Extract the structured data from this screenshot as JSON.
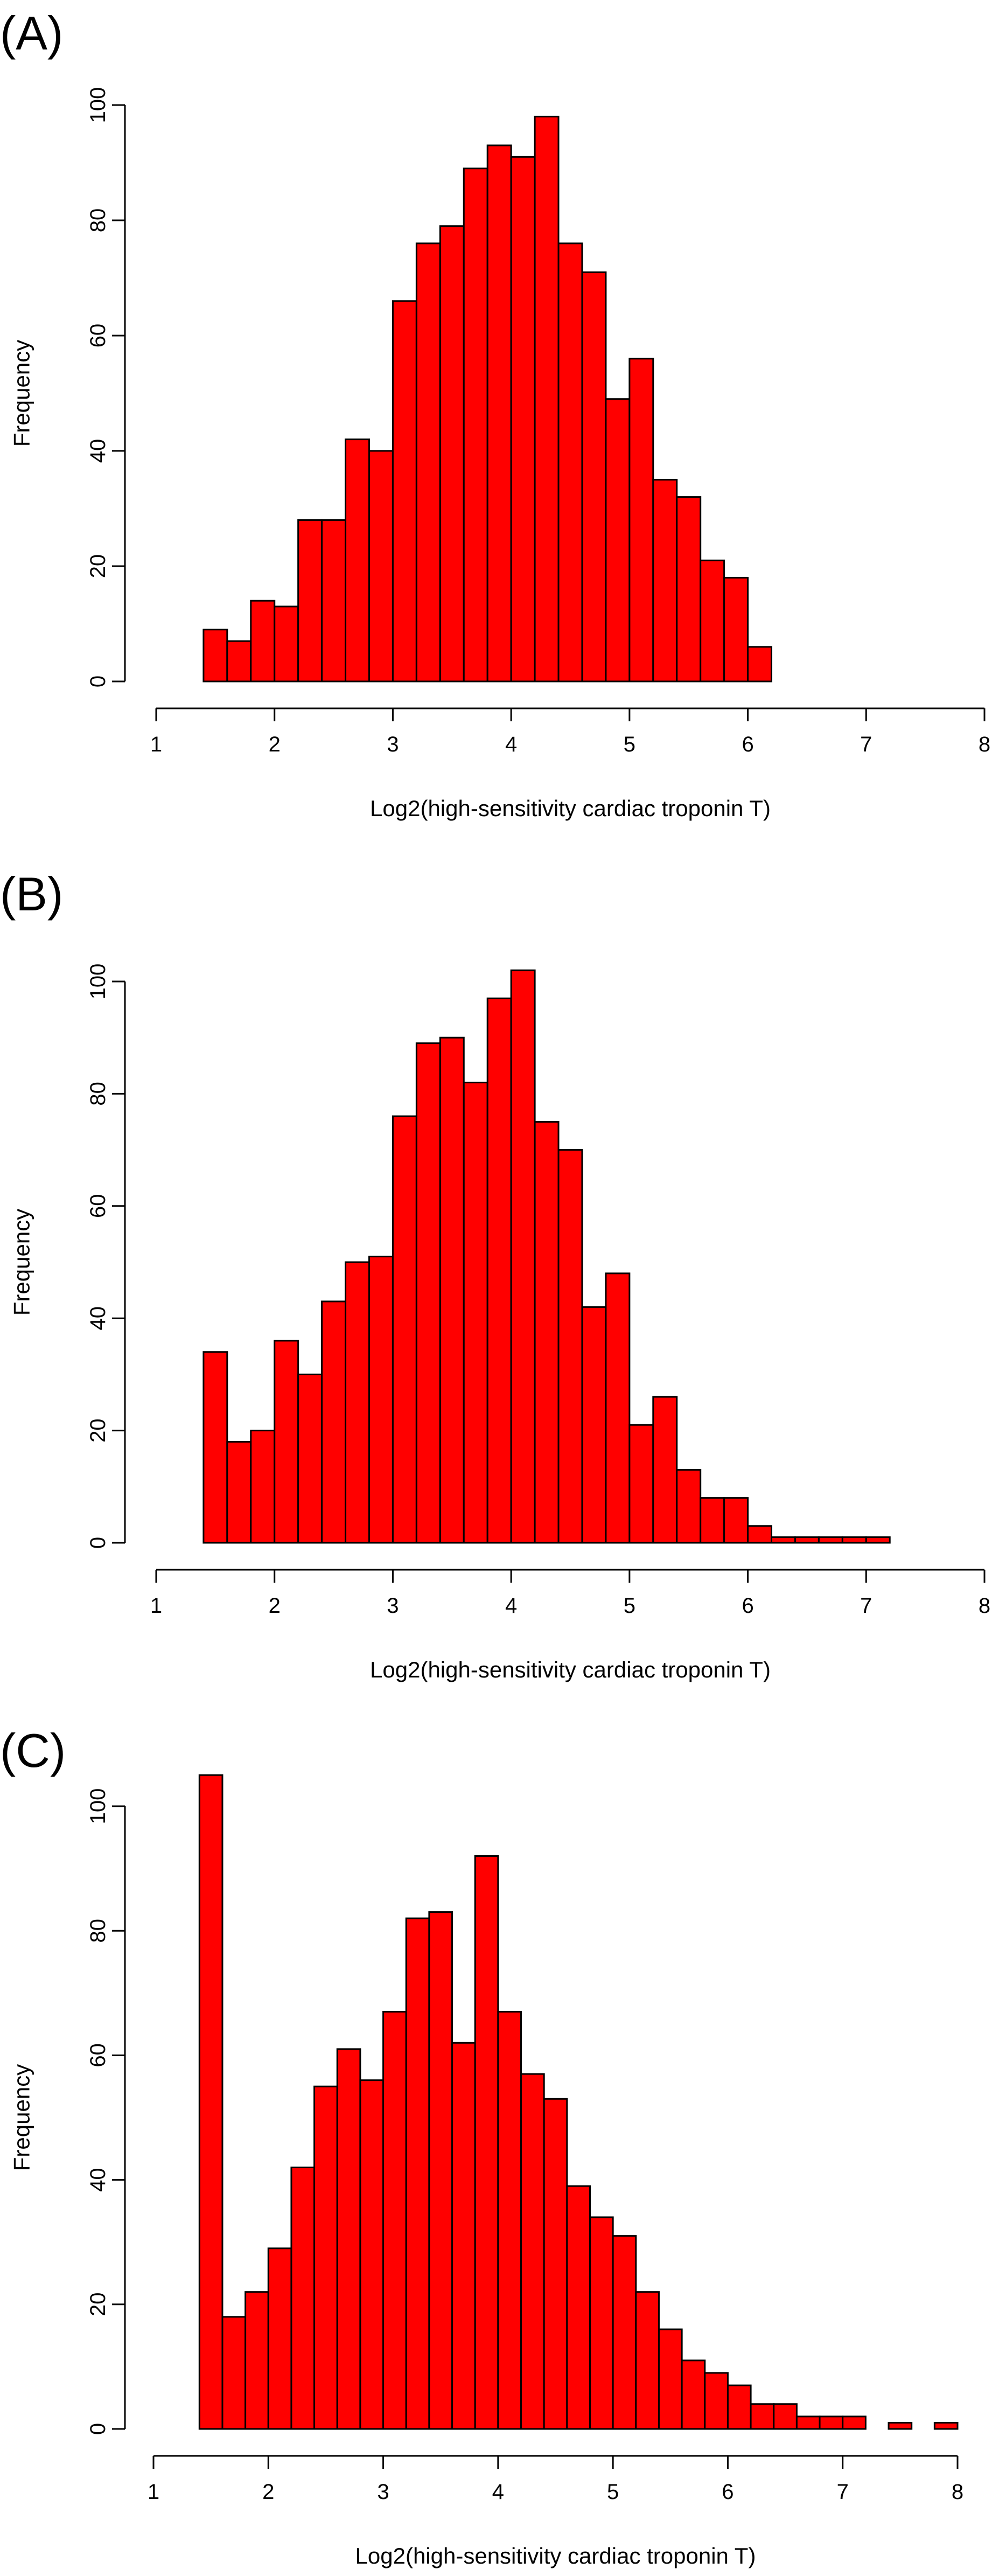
{
  "figure": {
    "panels": [
      "(A)",
      "(B)",
      "(C)"
    ]
  },
  "colors": {
    "bar_fill": "#ff0000",
    "bar_stroke": "#000000",
    "axis": "#000000",
    "background": "#ffffff"
  },
  "chart_data": [
    {
      "type": "bar",
      "panel_label": "(A)",
      "title": "",
      "xlabel": "Log2(high-sensitivity cardiac troponin T)",
      "ylabel": "Frequency",
      "xlim": [
        1,
        8
      ],
      "ylim": [
        0,
        100
      ],
      "xticks": [
        1,
        2,
        3,
        4,
        5,
        6,
        7,
        8
      ],
      "yticks": [
        0,
        20,
        40,
        60,
        80,
        100
      ],
      "grid": false,
      "legend": "none",
      "bin_start": 1.4,
      "bin_width": 0.2,
      "values": [
        9,
        7,
        14,
        13,
        28,
        28,
        42,
        40,
        66,
        76,
        79,
        89,
        93,
        91,
        98,
        76,
        71,
        49,
        56,
        35,
        32,
        21,
        18,
        6
      ]
    },
    {
      "type": "bar",
      "panel_label": "(B)",
      "title": "",
      "xlabel": "Log2(high-sensitivity cardiac troponin T)",
      "ylabel": "Frequency",
      "xlim": [
        1,
        8
      ],
      "ylim": [
        0,
        100
      ],
      "xticks": [
        1,
        2,
        3,
        4,
        5,
        6,
        7,
        8
      ],
      "yticks": [
        0,
        20,
        40,
        60,
        80,
        100
      ],
      "grid": false,
      "legend": "none",
      "bin_start": 1.4,
      "bin_width": 0.2,
      "values": [
        34,
        18,
        20,
        36,
        30,
        43,
        50,
        51,
        76,
        89,
        90,
        82,
        97,
        102,
        75,
        70,
        42,
        48,
        21,
        26,
        13,
        8,
        8,
        3,
        1,
        1,
        1,
        1,
        1
      ]
    },
    {
      "type": "bar",
      "panel_label": "(C)",
      "title": "",
      "xlabel": "Log2(high-sensitivity cardiac troponin T)",
      "ylabel": "Frequency",
      "xlim": [
        1,
        8
      ],
      "ylim": [
        0,
        100
      ],
      "xticks": [
        1,
        2,
        3,
        4,
        5,
        6,
        7,
        8
      ],
      "yticks": [
        0,
        20,
        40,
        60,
        80,
        100
      ],
      "grid": false,
      "legend": "none",
      "bin_start": 1.4,
      "bin_width": 0.2,
      "values": [
        105,
        18,
        22,
        29,
        42,
        55,
        61,
        56,
        67,
        82,
        83,
        62,
        92,
        67,
        57,
        53,
        39,
        34,
        31,
        22,
        16,
        11,
        9,
        7,
        4,
        4,
        2,
        2,
        2,
        0,
        1,
        0,
        1
      ]
    }
  ]
}
